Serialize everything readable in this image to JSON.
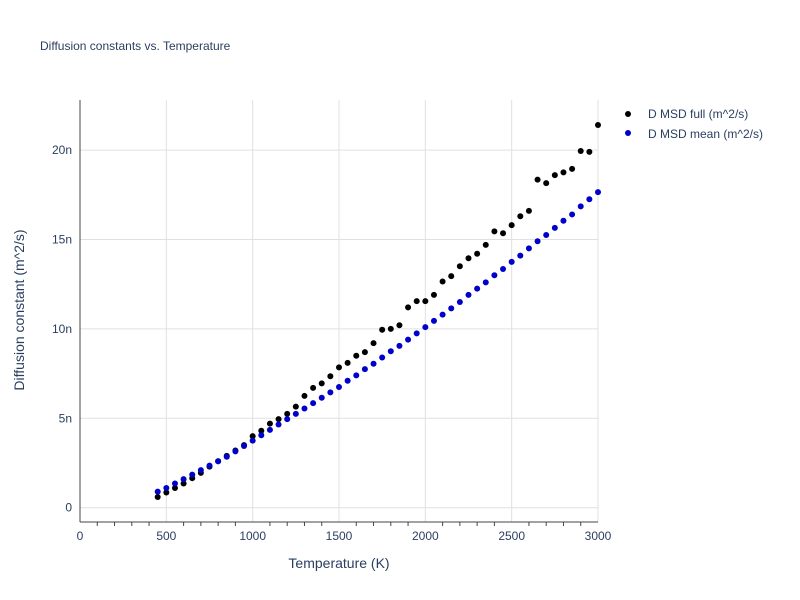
{
  "chart_data": {
    "type": "scatter",
    "title": "Diffusion constants vs. Temperature",
    "xlabel": "Temperature (K)",
    "ylabel": "Diffusion constant (m^2/s)",
    "xlim": [
      0,
      3000
    ],
    "ylim": [
      -0.8,
      22.8
    ],
    "x_ticks": [
      0,
      500,
      1000,
      1500,
      2000,
      2500,
      3000
    ],
    "x_tick_labels": [
      "0",
      "500",
      "1000",
      "1500",
      "2000",
      "2500",
      "3000"
    ],
    "y_ticks": [
      0,
      5,
      10,
      15,
      20
    ],
    "y_tick_labels": [
      "0",
      "5n",
      "10n",
      "15n",
      "20n"
    ],
    "y_unit_note": "values in units of 1e-9 m^2/s",
    "grid": true,
    "legend_position": "top-right",
    "series": [
      {
        "name": "D MSD full (m^2/s)",
        "color": "#000000",
        "x": [
          450,
          500,
          550,
          600,
          650,
          700,
          750,
          800,
          850,
          900,
          950,
          1000,
          1050,
          1100,
          1150,
          1200,
          1250,
          1300,
          1350,
          1400,
          1450,
          1500,
          1550,
          1600,
          1650,
          1700,
          1750,
          1800,
          1850,
          1900,
          1950,
          2000,
          2050,
          2100,
          2150,
          2200,
          2250,
          2300,
          2350,
          2400,
          2450,
          2500,
          2550,
          2600,
          2650,
          2700,
          2750,
          2800,
          2850,
          2900,
          2950,
          3000
        ],
        "values": [
          0.6,
          0.85,
          1.1,
          1.35,
          1.65,
          1.95,
          2.3,
          2.6,
          2.9,
          3.2,
          3.5,
          4.0,
          4.3,
          4.7,
          4.95,
          5.25,
          5.65,
          6.25,
          6.7,
          6.95,
          7.35,
          7.85,
          8.1,
          8.5,
          8.7,
          9.2,
          9.95,
          10.0,
          10.2,
          11.2,
          11.55,
          11.55,
          11.9,
          12.65,
          12.95,
          13.5,
          13.95,
          14.2,
          14.7,
          15.45,
          15.35,
          15.8,
          16.3,
          16.6,
          18.35,
          18.15,
          18.6,
          18.75,
          18.95,
          19.95,
          19.9,
          21.4
        ]
      },
      {
        "name": "D MSD mean (m^2/s)",
        "color": "#0000cd",
        "x": [
          450,
          500,
          550,
          600,
          650,
          700,
          750,
          800,
          850,
          900,
          950,
          1000,
          1050,
          1100,
          1150,
          1200,
          1250,
          1300,
          1350,
          1400,
          1450,
          1500,
          1550,
          1600,
          1650,
          1700,
          1750,
          1800,
          1850,
          1900,
          1950,
          2000,
          2050,
          2100,
          2150,
          2200,
          2250,
          2300,
          2350,
          2400,
          2450,
          2500,
          2550,
          2600,
          2650,
          2700,
          2750,
          2800,
          2850,
          2900,
          2950,
          3000
        ],
        "values": [
          0.9,
          1.1,
          1.35,
          1.6,
          1.85,
          2.1,
          2.35,
          2.6,
          2.85,
          3.15,
          3.45,
          3.75,
          4.05,
          4.35,
          4.65,
          4.95,
          5.25,
          5.55,
          5.85,
          6.15,
          6.45,
          6.75,
          7.1,
          7.4,
          7.75,
          8.05,
          8.4,
          8.75,
          9.05,
          9.4,
          9.75,
          10.1,
          10.45,
          10.8,
          11.15,
          11.5,
          11.9,
          12.25,
          12.6,
          13.0,
          13.35,
          13.75,
          14.1,
          14.5,
          14.9,
          15.25,
          15.65,
          16.05,
          16.4,
          16.85,
          17.25,
          17.65
        ]
      }
    ]
  }
}
